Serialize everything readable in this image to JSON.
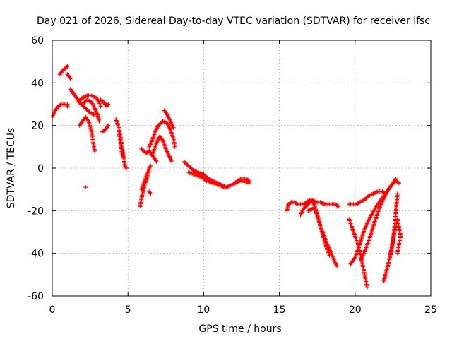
{
  "chart_data": {
    "type": "scatter",
    "title": "Day 021 of 2026, Sidereal Day-to-day VTEC variation (SDTVAR) for receiver ifsc",
    "xlabel": "GPS time / hours",
    "ylabel": "SDTVAR / TECUs",
    "xlim": [
      0,
      25
    ],
    "ylim": [
      -60,
      60
    ],
    "x_ticks": [
      0,
      5,
      10,
      15,
      20,
      25
    ],
    "y_ticks": [
      -60,
      -40,
      -20,
      0,
      20,
      40,
      60
    ],
    "x_tick_labels": [
      "0",
      "5",
      "10",
      "15",
      "20",
      "25"
    ],
    "y_tick_labels": [
      "-60",
      "-40",
      "-20",
      "0",
      "20",
      "40",
      "60"
    ],
    "grid": true,
    "marker": "+",
    "marker_color": "#ff0000",
    "arcs": [
      {
        "points": [
          [
            0.0,
            24
          ],
          [
            0.2,
            27
          ],
          [
            0.4,
            29
          ],
          [
            0.6,
            30
          ],
          [
            0.8,
            30
          ],
          [
            1.0,
            30
          ],
          [
            1.0,
            29
          ]
        ]
      },
      {
        "points": [
          [
            0.5,
            44
          ],
          [
            0.7,
            46
          ],
          [
            0.9,
            47
          ],
          [
            1.0,
            48
          ]
        ]
      },
      {
        "points": [
          [
            1.0,
            44
          ],
          [
            1.1,
            43
          ],
          [
            1.2,
            42
          ]
        ]
      },
      {
        "points": [
          [
            1.2,
            37
          ],
          [
            1.4,
            35
          ],
          [
            1.6,
            33
          ],
          [
            1.9,
            30
          ],
          [
            2.2,
            28
          ],
          [
            2.5,
            26
          ],
          [
            2.8,
            25
          ]
        ]
      },
      {
        "points": [
          [
            1.7,
            31
          ],
          [
            2.0,
            33
          ],
          [
            2.3,
            34
          ],
          [
            2.6,
            34
          ],
          [
            2.9,
            33
          ],
          [
            3.1,
            31
          ],
          [
            3.2,
            29
          ]
        ]
      },
      {
        "points": [
          [
            1.8,
            20
          ],
          [
            2.0,
            22
          ],
          [
            2.2,
            24
          ],
          [
            2.4,
            22
          ],
          [
            2.6,
            17
          ],
          [
            2.7,
            12
          ],
          [
            2.8,
            8
          ]
        ]
      },
      {
        "points": [
          [
            2.0,
            30
          ],
          [
            2.3,
            32
          ],
          [
            2.6,
            31
          ],
          [
            2.8,
            28
          ],
          [
            3.0,
            25
          ],
          [
            3.1,
            22
          ]
        ]
      },
      {
        "points": [
          [
            2.2,
            -9
          ]
        ]
      },
      {
        "points": [
          [
            3.2,
            32
          ],
          [
            3.4,
            31
          ],
          [
            3.6,
            29
          ],
          [
            3.7,
            30
          ]
        ]
      },
      {
        "points": [
          [
            3.3,
            17
          ],
          [
            3.5,
            18
          ],
          [
            3.7,
            20
          ]
        ]
      },
      {
        "points": [
          [
            4.2,
            23
          ],
          [
            4.3,
            21
          ],
          [
            4.4,
            19
          ],
          [
            4.5,
            15
          ],
          [
            4.6,
            10
          ],
          [
            4.7,
            6
          ],
          [
            4.8,
            1
          ],
          [
            4.9,
            0
          ]
        ]
      },
      {
        "points": [
          [
            4.4,
            17
          ],
          [
            4.5,
            12
          ],
          [
            4.6,
            7
          ],
          [
            4.7,
            5
          ]
        ]
      },
      {
        "points": [
          [
            5.8,
            -18
          ],
          [
            5.9,
            -14
          ],
          [
            6.0,
            -11
          ],
          [
            6.1,
            -8
          ],
          [
            6.3,
            -4
          ],
          [
            6.4,
            0
          ],
          [
            6.5,
            1
          ]
        ]
      },
      {
        "points": [
          [
            5.9,
            -10
          ],
          [
            6.1,
            -6
          ],
          [
            6.3,
            -2
          ]
        ]
      },
      {
        "points": [
          [
            5.9,
            9
          ],
          [
            6.2,
            7
          ],
          [
            6.4,
            8
          ],
          [
            6.6,
            6
          ],
          [
            6.9,
            3
          ]
        ]
      },
      {
        "points": [
          [
            6.4,
            -11
          ],
          [
            6.5,
            -12
          ]
        ]
      },
      {
        "points": [
          [
            6.4,
            10
          ],
          [
            6.6,
            13
          ],
          [
            6.8,
            17
          ],
          [
            7.0,
            20
          ],
          [
            7.3,
            22
          ],
          [
            7.6,
            21
          ],
          [
            7.8,
            18
          ],
          [
            8.0,
            14
          ],
          [
            8.1,
            10
          ]
        ]
      },
      {
        "points": [
          [
            6.6,
            6
          ],
          [
            6.9,
            12
          ],
          [
            7.1,
            15
          ],
          [
            7.3,
            13
          ],
          [
            7.5,
            9
          ],
          [
            7.7,
            6
          ],
          [
            7.9,
            3
          ]
        ]
      },
      {
        "points": [
          [
            7.4,
            27
          ],
          [
            7.6,
            25
          ],
          [
            7.8,
            22
          ],
          [
            8.0,
            19
          ]
        ]
      },
      {
        "points": [
          [
            8.7,
            3
          ],
          [
            9.0,
            1
          ],
          [
            9.3,
            -1
          ],
          [
            9.6,
            -2
          ],
          [
            10.0,
            -3
          ],
          [
            10.3,
            -5
          ],
          [
            10.6,
            -6
          ],
          [
            10.9,
            -7
          ],
          [
            11.2,
            -8
          ],
          [
            11.5,
            -9
          ],
          [
            11.8,
            -8
          ],
          [
            12.1,
            -7
          ],
          [
            12.4,
            -6
          ],
          [
            12.7,
            -6
          ],
          [
            13.0,
            -7
          ]
        ]
      },
      {
        "points": [
          [
            9.0,
            -2
          ],
          [
            9.4,
            -3
          ],
          [
            9.8,
            -4
          ],
          [
            10.2,
            -6
          ],
          [
            10.6,
            -7
          ],
          [
            11.0,
            -8
          ],
          [
            11.4,
            -9
          ]
        ]
      },
      {
        "points": [
          [
            12.2,
            -6
          ],
          [
            12.5,
            -5
          ],
          [
            12.8,
            -5
          ],
          [
            13.0,
            -6
          ]
        ]
      },
      {
        "points": [
          [
            15.5,
            -20
          ],
          [
            15.6,
            -17
          ],
          [
            15.8,
            -16
          ],
          [
            16.0,
            -16
          ],
          [
            16.2,
            -17
          ],
          [
            16.4,
            -17
          ],
          [
            16.6,
            -17
          ],
          [
            16.8,
            -16
          ],
          [
            17.0,
            -15
          ],
          [
            17.2,
            -15
          ],
          [
            17.4,
            -16
          ],
          [
            17.7,
            -16
          ],
          [
            18.0,
            -17
          ],
          [
            18.4,
            -17
          ],
          [
            18.7,
            -17
          ],
          [
            18.9,
            -18
          ]
        ]
      },
      {
        "points": [
          [
            16.4,
            -22
          ],
          [
            16.6,
            -19
          ],
          [
            16.9,
            -17
          ],
          [
            17.1,
            -15
          ],
          [
            17.3,
            -17
          ],
          [
            17.5,
            -22
          ],
          [
            17.7,
            -27
          ],
          [
            17.9,
            -32
          ],
          [
            18.1,
            -37
          ],
          [
            18.3,
            -41
          ]
        ]
      },
      {
        "points": [
          [
            16.9,
            -20
          ],
          [
            17.2,
            -19
          ],
          [
            17.4,
            -20
          ],
          [
            17.7,
            -27
          ],
          [
            18.0,
            -33
          ],
          [
            18.3,
            -38
          ],
          [
            18.6,
            -43
          ],
          [
            18.8,
            -46
          ]
        ]
      },
      {
        "points": [
          [
            19.6,
            -17
          ],
          [
            19.9,
            -17
          ],
          [
            20.1,
            -17
          ],
          [
            20.3,
            -16
          ],
          [
            20.6,
            -15
          ],
          [
            20.9,
            -13
          ],
          [
            21.2,
            -12
          ],
          [
            21.5,
            -11
          ],
          [
            21.8,
            -11
          ],
          [
            22.0,
            -12
          ]
        ]
      },
      {
        "points": [
          [
            19.6,
            -24
          ],
          [
            19.8,
            -28
          ],
          [
            20.0,
            -32
          ],
          [
            20.2,
            -36
          ],
          [
            20.4,
            -42
          ],
          [
            20.6,
            -49
          ],
          [
            20.8,
            -56
          ]
        ]
      },
      {
        "points": [
          [
            19.7,
            -45
          ],
          [
            20.0,
            -42
          ],
          [
            20.3,
            -36
          ],
          [
            20.6,
            -29
          ],
          [
            21.0,
            -23
          ],
          [
            21.4,
            -18
          ],
          [
            21.8,
            -14
          ],
          [
            22.1,
            -11
          ],
          [
            22.4,
            -8
          ],
          [
            22.7,
            -6
          ],
          [
            22.9,
            -7
          ]
        ]
      },
      {
        "points": [
          [
            20.4,
            -43
          ],
          [
            20.7,
            -38
          ],
          [
            21.0,
            -32
          ],
          [
            21.3,
            -25
          ],
          [
            21.6,
            -19
          ],
          [
            21.9,
            -14
          ],
          [
            22.2,
            -10
          ],
          [
            22.5,
            -7
          ],
          [
            22.7,
            -5
          ]
        ]
      },
      {
        "points": [
          [
            21.9,
            -53
          ],
          [
            22.0,
            -50
          ],
          [
            22.2,
            -45
          ],
          [
            22.4,
            -38
          ],
          [
            22.6,
            -30
          ],
          [
            22.8,
            -24
          ],
          [
            22.9,
            -28
          ],
          [
            23.0,
            -32
          ],
          [
            22.8,
            -40
          ]
        ]
      },
      {
        "points": [
          [
            22.3,
            -42
          ],
          [
            22.5,
            -35
          ],
          [
            22.6,
            -28
          ],
          [
            22.7,
            -20
          ],
          [
            22.8,
            -12
          ]
        ]
      }
    ]
  }
}
